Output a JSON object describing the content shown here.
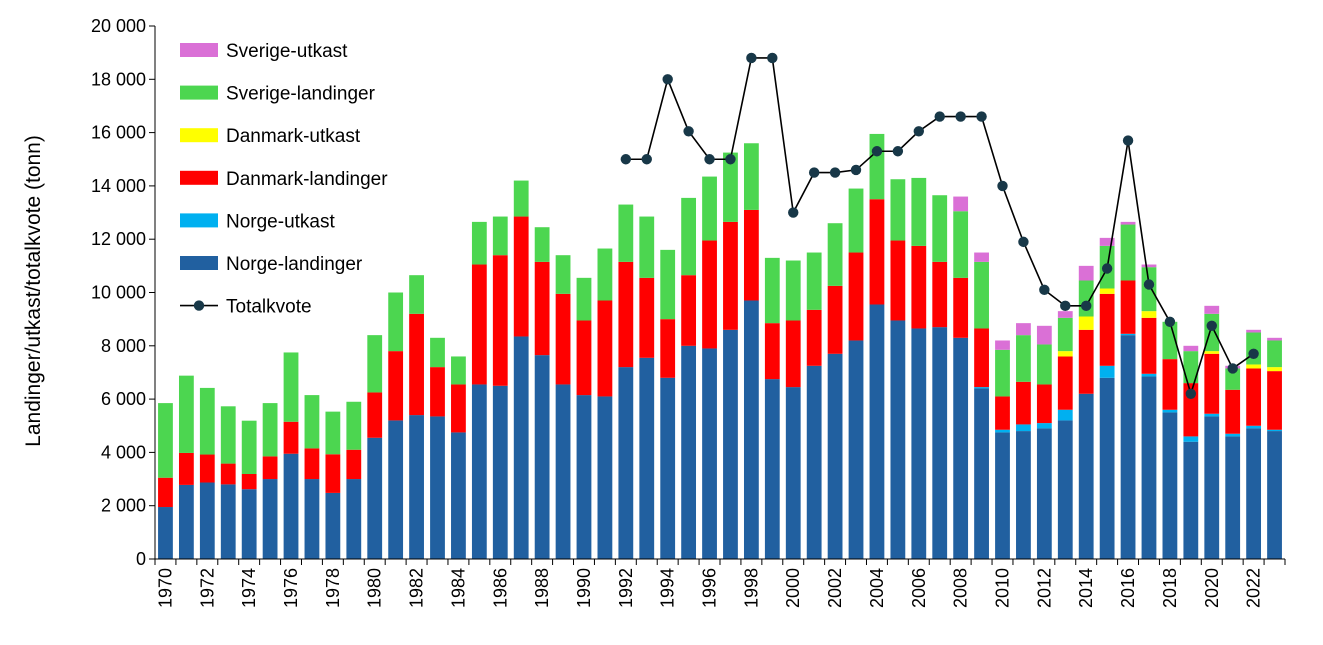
{
  "chart_data": {
    "type": "bar",
    "stacked": true,
    "title": "",
    "xlabel": "",
    "ylabel": "Landinger/utkast/totalkvote (tonn)",
    "ylim": [
      0,
      20000
    ],
    "yticks": [
      0,
      2000,
      4000,
      6000,
      8000,
      10000,
      12000,
      14000,
      16000,
      18000,
      20000
    ],
    "ytick_labels": [
      "0",
      "2 000",
      "4 000",
      "6 000",
      "8 000",
      "10 000",
      "12 000",
      "14 000",
      "16 000",
      "18 000",
      "20 000"
    ],
    "xtick_labels": [
      "1970",
      "1972",
      "1974",
      "1976",
      "1978",
      "1980",
      "1982",
      "1984",
      "1986",
      "1988",
      "1990",
      "1992",
      "1994",
      "1996",
      "1998",
      "2000",
      "2002",
      "2004",
      "2006",
      "2008",
      "2010",
      "2012",
      "2014",
      "2016",
      "2018",
      "2020",
      "2022"
    ],
    "legend_position": "top-left",
    "categories": [
      1970,
      1971,
      1972,
      1973,
      1974,
      1975,
      1976,
      1977,
      1978,
      1979,
      1980,
      1981,
      1982,
      1983,
      1984,
      1985,
      1986,
      1987,
      1988,
      1989,
      1990,
      1991,
      1992,
      1993,
      1994,
      1995,
      1996,
      1997,
      1998,
      1999,
      2000,
      2001,
      2002,
      2003,
      2004,
      2005,
      2006,
      2007,
      2008,
      2009,
      2010,
      2011,
      2012,
      2013,
      2014,
      2015,
      2016,
      2017,
      2018,
      2019,
      2020,
      2021,
      2022,
      2023
    ],
    "series": [
      {
        "name": "Norge-landinger",
        "color": "#2160A0",
        "values": [
          1950,
          2780,
          2870,
          2800,
          2620,
          3000,
          3950,
          3000,
          2480,
          3000,
          4550,
          5200,
          5400,
          5350,
          4750,
          6550,
          6500,
          8350,
          7650,
          6550,
          6150,
          6100,
          7200,
          7550,
          6800,
          8000,
          7900,
          8600,
          9700,
          6750,
          6450,
          7250,
          7700,
          8200,
          9550,
          8950,
          8650,
          8700,
          8300,
          6400,
          4750,
          4800,
          4900,
          5200,
          6200,
          6800,
          8400,
          6850,
          5500,
          4400,
          5350,
          4600,
          4900,
          4800
        ]
      },
      {
        "name": "Norge-utkast",
        "color": "#00B0F0",
        "values": [
          0,
          0,
          0,
          0,
          0,
          0,
          0,
          0,
          0,
          0,
          0,
          0,
          0,
          0,
          0,
          0,
          0,
          0,
          0,
          0,
          0,
          0,
          0,
          0,
          0,
          0,
          0,
          0,
          0,
          0,
          0,
          0,
          0,
          0,
          0,
          0,
          0,
          0,
          0,
          50,
          100,
          250,
          200,
          400,
          0,
          450,
          50,
          100,
          100,
          200,
          100,
          100,
          100,
          50
        ]
      },
      {
        "name": "Danmark-landinger",
        "color": "#FF0000",
        "values": [
          1100,
          1200,
          1050,
          780,
          570,
          850,
          1200,
          1150,
          1450,
          1100,
          1700,
          2600,
          3800,
          1850,
          1800,
          4500,
          4900,
          4500,
          3500,
          3400,
          2800,
          3600,
          3950,
          3000,
          2200,
          2650,
          4050,
          4050,
          3400,
          2100,
          2500,
          2100,
          2550,
          3300,
          3950,
          3000,
          3100,
          2450,
          2250,
          2200,
          1250,
          1600,
          1450,
          2000,
          2400,
          2700,
          2000,
          2100,
          1900,
          2000,
          2250,
          1650,
          2150,
          2200
        ]
      },
      {
        "name": "Danmark-utkast",
        "color": "#FFFF00",
        "values": [
          0,
          0,
          0,
          0,
          0,
          0,
          0,
          0,
          0,
          0,
          0,
          0,
          0,
          0,
          0,
          0,
          0,
          0,
          0,
          0,
          0,
          0,
          0,
          0,
          0,
          0,
          0,
          0,
          0,
          0,
          0,
          0,
          0,
          0,
          0,
          0,
          0,
          0,
          0,
          0,
          0,
          0,
          0,
          200,
          500,
          200,
          0,
          250,
          0,
          0,
          100,
          0,
          150,
          150
        ]
      },
      {
        "name": "Sverige-landinger",
        "color": "#4CD650",
        "values": [
          2800,
          2900,
          2500,
          2150,
          2000,
          2000,
          2600,
          2000,
          1600,
          1800,
          2150,
          2200,
          1450,
          1100,
          1050,
          1600,
          1450,
          1350,
          1300,
          1450,
          1600,
          1950,
          2150,
          2300,
          2600,
          2900,
          2400,
          2600,
          2500,
          2450,
          2250,
          2150,
          2350,
          2400,
          2450,
          2300,
          2550,
          2500,
          2500,
          2500,
          1750,
          1750,
          1500,
          1250,
          1350,
          1600,
          2100,
          1650,
          1400,
          1200,
          1400,
          800,
          1200,
          1000
        ]
      },
      {
        "name": "Sverige-utkast",
        "color": "#DA70D6",
        "values": [
          0,
          0,
          0,
          0,
          0,
          0,
          0,
          0,
          0,
          0,
          0,
          0,
          0,
          0,
          0,
          0,
          0,
          0,
          0,
          0,
          0,
          0,
          0,
          0,
          0,
          0,
          0,
          0,
          0,
          0,
          0,
          0,
          0,
          0,
          0,
          0,
          0,
          0,
          550,
          350,
          350,
          450,
          700,
          250,
          550,
          300,
          100,
          100,
          0,
          200,
          300,
          100,
          100,
          100
        ]
      }
    ],
    "line": {
      "name": "Totalkvote",
      "color": "#000000",
      "marker_color": "#183848",
      "years": [
        1992,
        1993,
        1994,
        1995,
        1996,
        1997,
        1998,
        1999,
        2000,
        2001,
        2002,
        2003,
        2004,
        2005,
        2006,
        2007,
        2008,
        2009,
        2010,
        2011,
        2012,
        2013,
        2014,
        2015,
        2016,
        2017,
        2018,
        2019,
        2020,
        2021,
        2022
      ],
      "values": [
        15000,
        15000,
        18000,
        16050,
        15000,
        15000,
        18800,
        18800,
        13000,
        14500,
        14500,
        14600,
        15300,
        15300,
        16050,
        16600,
        16600,
        16600,
        14000,
        11900,
        10100,
        9500,
        9500,
        10900,
        15700,
        10300,
        8900,
        6200,
        8750,
        7150,
        7700
      ]
    },
    "legend_order": [
      "Sverige-utkast",
      "Sverige-landinger",
      "Danmark-utkast",
      "Danmark-landinger",
      "Norge-utkast",
      "Norge-landinger",
      "Totalkvote"
    ]
  }
}
